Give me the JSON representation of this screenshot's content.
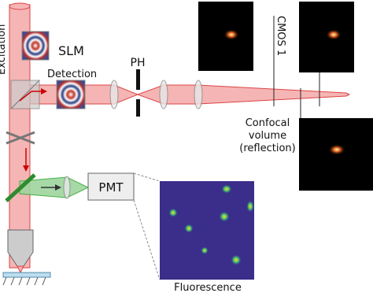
{
  "labels": {
    "excitation": "Excitation",
    "slm": "SLM",
    "detection": "Detection",
    "pinhole": "PH",
    "camera": "CMOS 1",
    "confocal": [
      "Confocal",
      "volume",
      "(reflection)"
    ],
    "pmt": "PMT",
    "fluorescence": "Fluorescence"
  }
}
